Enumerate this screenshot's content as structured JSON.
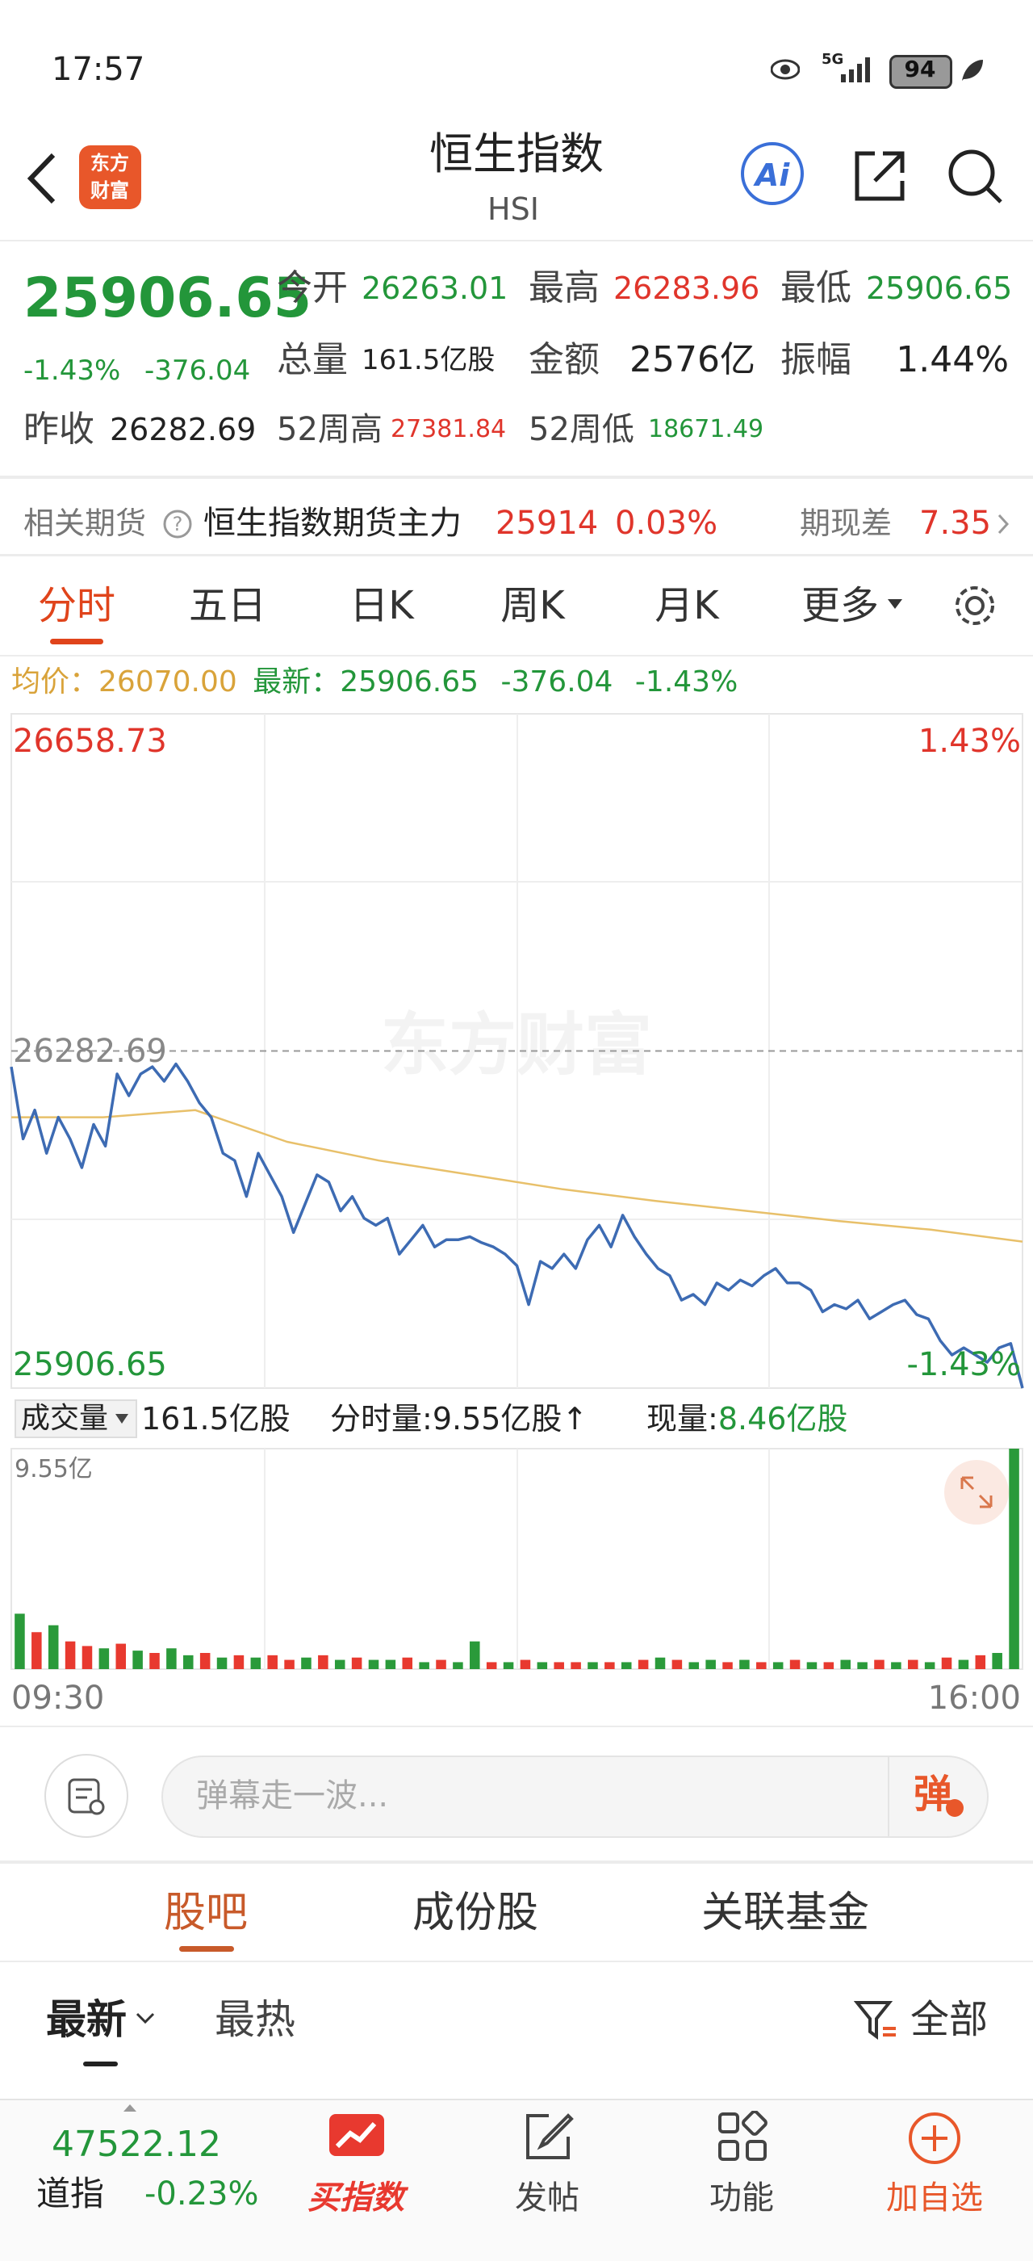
{
  "status_bar": {
    "time": "17:57",
    "network": "5G",
    "battery": "94"
  },
  "header": {
    "logo": [
      "东方",
      "财富"
    ],
    "title": "恒生指数",
    "subtitle": "HSI",
    "ai": "Ai"
  },
  "quote": {
    "price": "25906.65",
    "change_pct": "-1.43%",
    "change": "-376.04",
    "open": {
      "label": "今开",
      "value": "26263.01"
    },
    "high": {
      "label": "最高",
      "value": "26283.96"
    },
    "low": {
      "label": "最低",
      "value": "25906.65"
    },
    "volume": {
      "label": "总量",
      "value": "161.5亿股"
    },
    "amount": {
      "label": "金额",
      "value": "2576亿"
    },
    "amplitude": {
      "label": "振幅",
      "value": "1.44%"
    },
    "prev_close": {
      "label": "昨收",
      "value": "26282.69"
    },
    "high_52w": {
      "label": "52周高",
      "value": "27381.84"
    },
    "low_52w": {
      "label": "52周低",
      "value": "18671.49"
    }
  },
  "futures": {
    "label": "相关期货",
    "name": "恒生指数期货主力",
    "price": "25914",
    "change_pct": "0.03%",
    "basis_label": "期现差",
    "basis": "7.35"
  },
  "tabs": [
    "分时",
    "五日",
    "日K",
    "周K",
    "月K",
    "更多"
  ],
  "intraday": {
    "legend": {
      "avg_label": "均价：",
      "avg": "26070.00",
      "last_label": "最新：",
      "last": "25906.65",
      "change": "-376.04",
      "change_pct": "-1.43%"
    },
    "ylim": [
      25906.65,
      26658.73
    ],
    "prev_close": 26282.69,
    "top_pct": "1.43%",
    "bottom_pct": "-1.43%",
    "watermark": "东方财富",
    "price_color": "#3d6bb3",
    "avg_color": "#e8c06a",
    "price": [
      26265.0,
      26184.6,
      26216.8,
      26168.6,
      26208.7,
      26184.6,
      26152.5,
      26200.7,
      26176.6,
      26257.0,
      26232.8,
      26257.0,
      26265.0,
      26248.9,
      26268.2,
      26248.9,
      26224.8,
      26208.7,
      26168.6,
      26160.5,
      26120.4,
      26168.6,
      26144.5,
      26120.4,
      26080.2,
      26112.3,
      26144.5,
      26136.4,
      26104.3,
      26120.4,
      26096.2,
      26088.2,
      26096.2,
      26056.1,
      26072.1,
      26088.2,
      26064.1,
      26072.1,
      26072.1,
      26075.4,
      26068.9,
      26064.1,
      26056.1,
      26043.2,
      25999.8,
      26048.0,
      26040.0,
      26056.1,
      26040.0,
      26072.1,
      26088.2,
      26064.1,
      26099.5,
      26075.4,
      26056.1,
      26040.0,
      26032.0,
      26004.7,
      26011.1,
      25999.8,
      26023.9,
      26015.9,
      26027.2,
      26020.7,
      26032.0,
      26040.0,
      26023.9,
      26023.9,
      26015.9,
      25991.8,
      25999.8,
      25995.0,
      26004.7,
      25983.8,
      25991.8,
      25999.8,
      26004.7,
      25988.6,
      25983.8,
      25959.7,
      25943.6,
      25951.6,
      25943.6,
      25935.5,
      25951.6,
      25956.4,
      25906.65
    ],
    "avg": [
      26208.7,
      26208.7,
      26216.8,
      26181.4,
      26160.5,
      26144.5,
      26128.4,
      26115.5,
      26104.3,
      26093.0,
      26083.4,
      26070.0
    ],
    "volume_header": {
      "selector": "成交量",
      "total": "161.5亿股",
      "minute_label": "分时量:",
      "minute": "9.55亿股↑",
      "current_label": "现量:",
      "current": "8.46亿股"
    },
    "volume_ylim": [
      0,
      9.55
    ],
    "volume_max_label": "9.55亿",
    "volume": [
      2.4,
      1.6,
      1.9,
      1.2,
      1.0,
      0.9,
      1.1,
      0.8,
      0.7,
      0.9,
      0.6,
      0.7,
      0.5,
      0.6,
      0.5,
      0.6,
      0.4,
      0.5,
      0.6,
      0.4,
      0.5,
      0.4,
      0.4,
      0.5,
      0.3,
      0.4,
      0.3,
      1.2,
      0.3,
      0.3,
      0.4,
      0.3,
      0.3,
      0.3,
      0.3,
      0.3,
      0.3,
      0.4,
      0.5,
      0.4,
      0.3,
      0.4,
      0.3,
      0.4,
      0.3,
      0.3,
      0.4,
      0.3,
      0.3,
      0.4,
      0.3,
      0.4,
      0.3,
      0.4,
      0.3,
      0.5,
      0.4,
      0.6,
      0.7,
      9.55
    ],
    "volume_colors": [
      "#2a9a3a",
      "#e8392f",
      "#2a9a3a",
      "#e8392f",
      "#e8392f",
      "#2a9a3a",
      "#e8392f",
      "#2a9a3a",
      "#e8392f",
      "#2a9a3a",
      "#2a9a3a",
      "#e8392f",
      "#2a9a3a",
      "#e8392f",
      "#2a9a3a",
      "#e8392f",
      "#e8392f",
      "#2a9a3a",
      "#e8392f",
      "#2a9a3a",
      "#e8392f",
      "#2a9a3a",
      "#2a9a3a",
      "#e8392f",
      "#2a9a3a",
      "#e8392f",
      "#2a9a3a",
      "#2a9a3a",
      "#e8392f",
      "#2a9a3a",
      "#e8392f",
      "#2a9a3a",
      "#e8392f",
      "#e8392f",
      "#2a9a3a",
      "#e8392f",
      "#2a9a3a",
      "#e8392f",
      "#2a9a3a",
      "#e8392f",
      "#2a9a3a",
      "#2a9a3a",
      "#e8392f",
      "#2a9a3a",
      "#e8392f",
      "#2a9a3a",
      "#e8392f",
      "#2a9a3a",
      "#e8392f",
      "#2a9a3a",
      "#2a9a3a",
      "#e8392f",
      "#2a9a3a",
      "#e8392f",
      "#2a9a3a",
      "#e8392f",
      "#2a9a3a",
      "#e8392f",
      "#2a9a3a",
      "#2a9a3a"
    ],
    "time_labels": [
      "09:30",
      "16:00"
    ]
  },
  "comment": {
    "placeholder": "弹幕走一波...",
    "button": "弹"
  },
  "sub_tabs": [
    "股吧",
    "成份股",
    "关联基金"
  ],
  "filters": {
    "latest": "最新",
    "hot": "最热",
    "all": "全部"
  },
  "bottom_nav": {
    "ticker": {
      "price": "47522.12",
      "name": "道指",
      "change": "-0.23%"
    },
    "items": [
      "买指数",
      "发帖",
      "功能",
      "加自选"
    ]
  }
}
